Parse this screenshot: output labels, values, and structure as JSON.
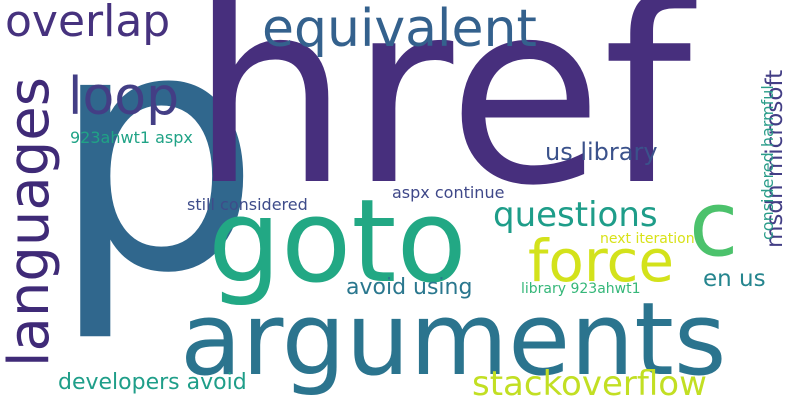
{
  "words": {
    "p": {
      "text": "p",
      "color": "#30678D"
    },
    "href": {
      "text": "href",
      "color": "#472F7D"
    },
    "arguments": {
      "text": "arguments",
      "color": "#2B748E"
    },
    "goto": {
      "text": "goto",
      "color": "#22A884"
    },
    "c": {
      "text": "c",
      "color": "#4CC26C"
    },
    "languages": {
      "text": "languages",
      "color": "#3F2A77"
    },
    "equivalent": {
      "text": "equivalent",
      "color": "#34618D"
    },
    "overlap": {
      "text": "overlap",
      "color": "#46327E"
    },
    "loop": {
      "text": "loop",
      "color": "#433E85"
    },
    "force": {
      "text": "force",
      "color": "#D3E21B"
    },
    "questions": {
      "text": "questions",
      "color": "#1E9D89"
    },
    "stackoverflow": {
      "text": "stackoverflow",
      "color": "#C2DF23"
    },
    "msdn_microsoft": {
      "text": "msdn microsoft",
      "color": "#433E85"
    },
    "us_library": {
      "text": "us library",
      "color": "#3B528B"
    },
    "considered_harmful": {
      "text": "considered harmful",
      "color": "#2A9C89"
    },
    "en_us": {
      "text": "en us",
      "color": "#25858E"
    },
    "avoid_using": {
      "text": "avoid using",
      "color": "#2A778E"
    },
    "developers_avoid": {
      "text": "developers avoid",
      "color": "#1F9E89"
    },
    "w923ahwt1_aspx": {
      "text": "923ahwt1 aspx",
      "color": "#20A386"
    },
    "aspx_continue": {
      "text": "aspx continue",
      "color": "#3F4889"
    },
    "still_considered": {
      "text": "still considered",
      "color": "#3E4C8A"
    },
    "next_iteration": {
      "text": "next iteration",
      "color": "#D8E219"
    },
    "library_923ahwt1": {
      "text": "library 923ahwt1",
      "color": "#35B779"
    }
  }
}
